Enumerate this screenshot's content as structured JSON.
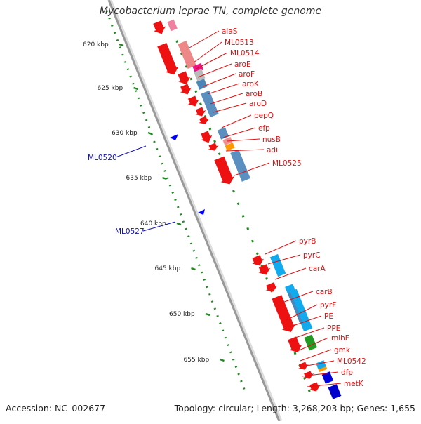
{
  "title": "Mycobacterium leprae TN, complete genome",
  "footer": {
    "accession": "Accession: NC_002677",
    "summary": "Topology: circular; Length: 3,268,203 bp; Genes: 1,655"
  },
  "colors": {
    "forward_gene": "#ee1111",
    "reverse_blue": "#4a86b8",
    "cyan": "#11aaee",
    "label_red": "#dd1111",
    "label_blue": "#1111aa",
    "tick_green": "#228822",
    "backbone": "#999999"
  },
  "scale": {
    "ticks": [
      "620 kbp",
      "625 kbp",
      "630 kbp",
      "635 kbp",
      "640 kbp",
      "645 kbp",
      "650 kbp",
      "655 kbp"
    ]
  },
  "gene_labels_right": [
    "alaS",
    "ML0513",
    "ML0514",
    "aroE",
    "aroF",
    "aroK",
    "aroB",
    "aroD",
    "pepQ",
    "efp",
    "nusB",
    "adi",
    "ML0525",
    "pyrB",
    "pyrC",
    "carA",
    "carB",
    "pyrF",
    "PE",
    "PPE",
    "mihF",
    "gmk",
    "ML0542",
    "dfp",
    "metK"
  ],
  "gene_labels_left": [
    "ML0520",
    "ML0527"
  ]
}
